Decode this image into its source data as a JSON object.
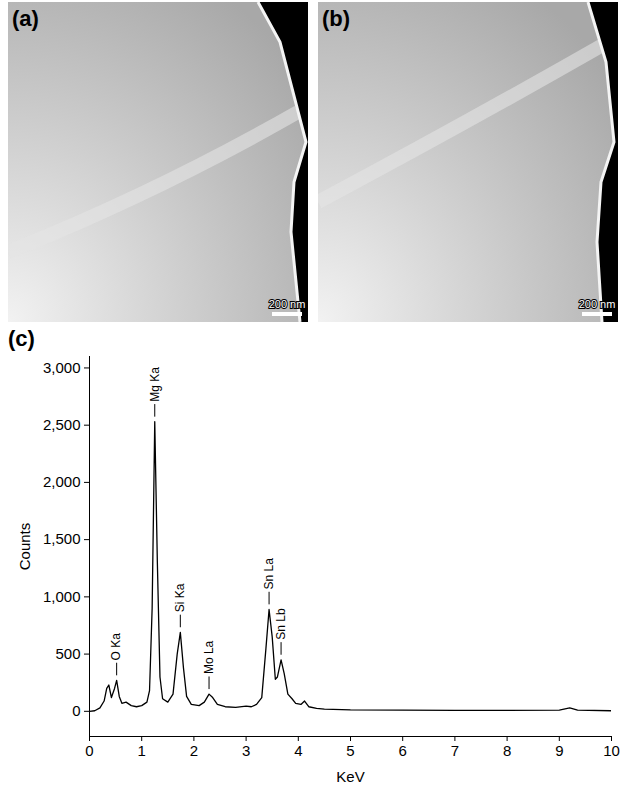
{
  "panels": [
    {
      "label": "(a)",
      "scale_bar": "200 nm"
    },
    {
      "label": "(b)",
      "scale_bar": "200 nm"
    }
  ],
  "chart_data": {
    "type": "line",
    "panel_label": "(c)",
    "x_label": "KeV",
    "y_label": "Counts",
    "color": "#000000",
    "grid": false,
    "x": [
      0,
      0.1,
      0.2,
      0.28,
      0.33,
      0.37,
      0.42,
      0.48,
      0.52,
      0.57,
      0.62,
      0.7,
      0.8,
      0.9,
      1.0,
      1.1,
      1.15,
      1.2,
      1.25,
      1.3,
      1.35,
      1.4,
      1.5,
      1.6,
      1.68,
      1.74,
      1.8,
      1.86,
      1.95,
      2.1,
      2.2,
      2.29,
      2.36,
      2.45,
      2.6,
      2.8,
      3.0,
      3.1,
      3.2,
      3.3,
      3.38,
      3.44,
      3.5,
      3.56,
      3.6,
      3.67,
      3.73,
      3.8,
      3.88,
      3.95,
      4.05,
      4.12,
      4.2,
      4.35,
      4.5,
      5.0,
      6.0,
      7.0,
      8.0,
      9.0,
      9.2,
      9.35,
      10.0
    ],
    "values": [
      0,
      5,
      30,
      90,
      200,
      230,
      120,
      200,
      270,
      130,
      70,
      80,
      50,
      40,
      50,
      80,
      180,
      900,
      2530,
      1300,
      300,
      110,
      80,
      150,
      500,
      690,
      380,
      130,
      60,
      50,
      80,
      150,
      120,
      60,
      40,
      35,
      45,
      40,
      60,
      120,
      550,
      890,
      650,
      280,
      300,
      450,
      330,
      150,
      110,
      70,
      60,
      90,
      40,
      25,
      20,
      12,
      10,
      8,
      8,
      10,
      30,
      10,
      5
    ],
    "xlim": [
      0,
      10
    ],
    "ylim": [
      -220,
      3100
    ],
    "xticks": [
      0,
      1,
      2,
      3,
      4,
      5,
      6,
      7,
      8,
      9,
      10
    ],
    "yticks": [
      0,
      500,
      1000,
      1500,
      2000,
      2500,
      3000
    ],
    "annotations": [
      {
        "text": "O Ka",
        "x": 0.52
      },
      {
        "text": "Mg Ka",
        "x": 1.25
      },
      {
        "text": "Si Ka",
        "x": 1.74
      },
      {
        "text": "Mo La",
        "x": 2.29
      },
      {
        "text": "Sn La",
        "x": 3.44
      },
      {
        "text": "Sn Lb",
        "x": 3.67
      }
    ]
  }
}
